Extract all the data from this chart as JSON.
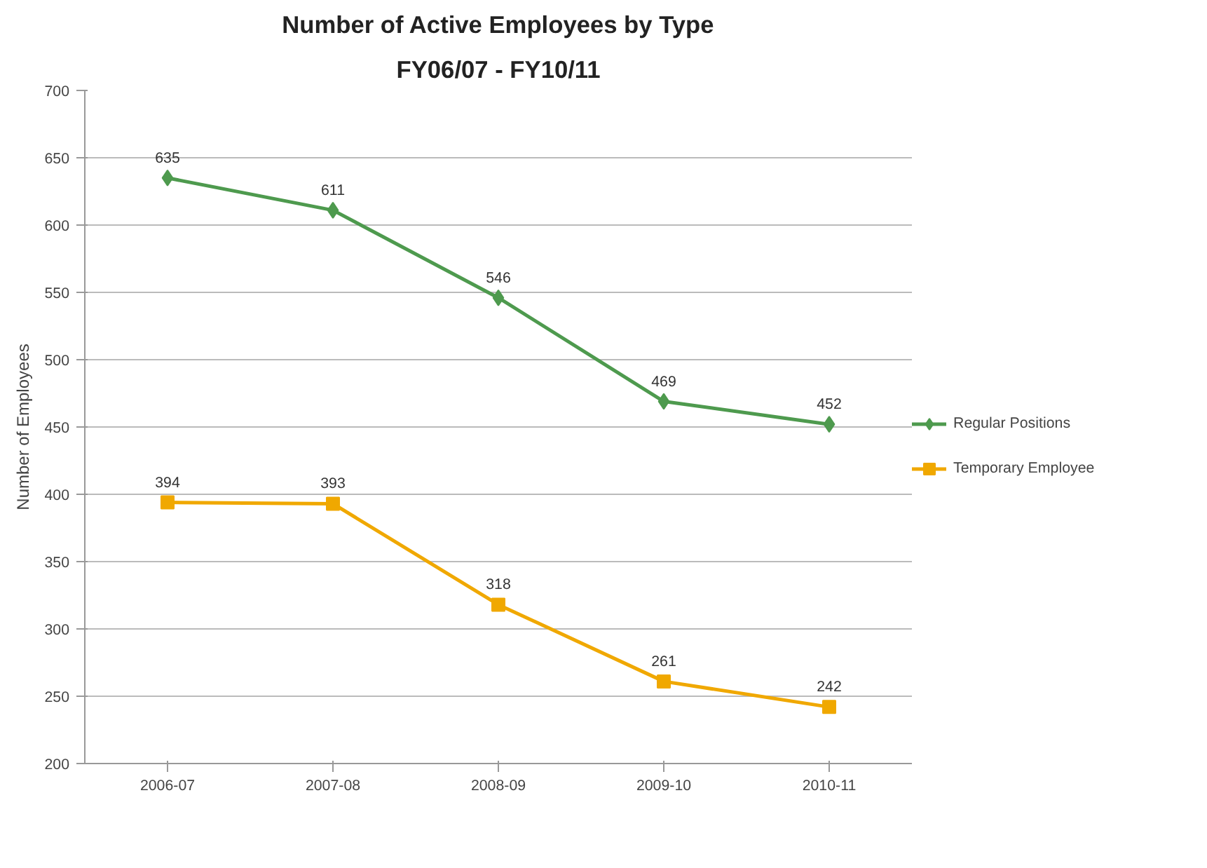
{
  "chart_data": {
    "type": "line",
    "title": "Number of Active Employees by Type",
    "subtitle": "FY06/07 - FY10/11",
    "ylabel": "Number of Employees",
    "categories": [
      "2006-07",
      "2007-08",
      "2008-09",
      "2009-10",
      "2010-11"
    ],
    "series": [
      {
        "name": "Regular Positions",
        "color": "#4e9a4e",
        "marker": "diamond",
        "values": [
          635,
          611,
          546,
          469,
          452
        ]
      },
      {
        "name": "Temporary Employee",
        "color": "#f0a800",
        "marker": "square",
        "values": [
          394,
          393,
          318,
          261,
          242
        ]
      }
    ],
    "ylim": [
      200,
      700
    ],
    "yticks": [
      200,
      250,
      300,
      350,
      400,
      450,
      500,
      550,
      600,
      650,
      700
    ],
    "grid": "y",
    "legend": "right",
    "data_labels": true
  }
}
